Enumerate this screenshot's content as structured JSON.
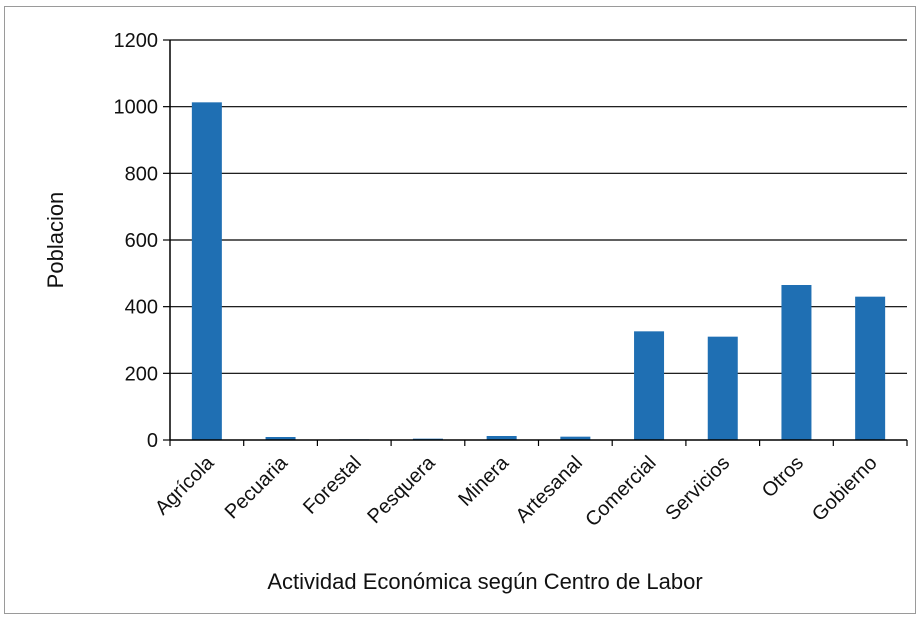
{
  "chart_data": {
    "type": "bar",
    "title": "",
    "xlabel": "Actividad Económica según Centro de Labor",
    "ylabel": "Poblacion",
    "categories": [
      "Agrícola",
      "Pecuaria",
      "Forestal",
      "Pesquera",
      "Minera",
      "Artesanal",
      "Comercial",
      "Servicios",
      "Otros",
      "Gobierno"
    ],
    "values": [
      1013,
      9,
      2,
      4,
      12,
      10,
      326,
      310,
      465,
      430
    ],
    "ylim": [
      0,
      1200
    ],
    "yticks": [
      "0",
      "200",
      "400",
      "600",
      "800",
      "1000",
      "1200"
    ],
    "grid": true,
    "bar_color": "#1f6fb3"
  }
}
